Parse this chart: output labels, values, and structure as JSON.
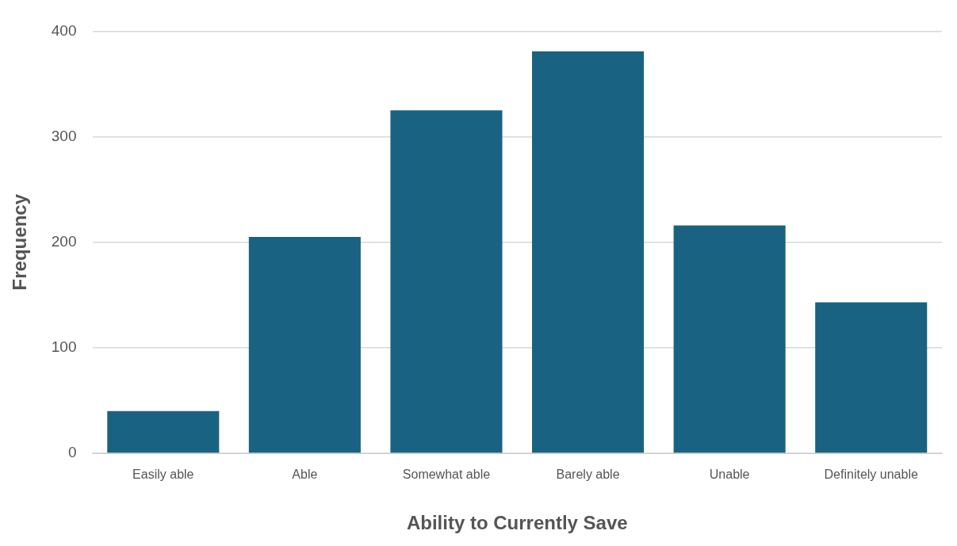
{
  "chart_data": {
    "type": "bar",
    "xlabel": "Ability to Currently Save",
    "ylabel": "Frequency",
    "categories": [
      "Easily able",
      "Able",
      "Somewhat able",
      "Barely able",
      "Unable",
      "Definitely unable"
    ],
    "values": [
      40,
      205,
      325,
      381,
      216,
      143
    ],
    "color": "#1a6282",
    "ylim": [
      0,
      400
    ],
    "yticks": [
      0,
      100,
      200,
      300,
      400
    ],
    "grid": "y"
  }
}
